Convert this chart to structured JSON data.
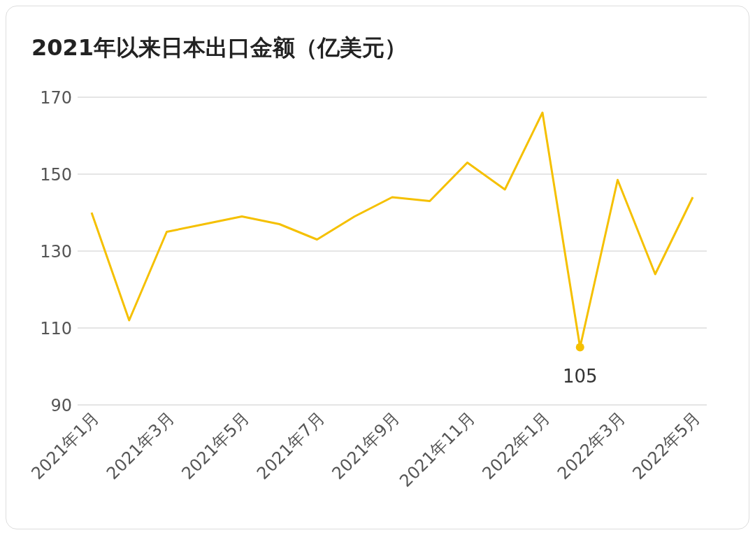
{
  "chart_data": {
    "type": "line",
    "title": "2021年以来日本出口金额（亿美元）",
    "categories": [
      "2021年1月",
      null,
      "2021年3月",
      null,
      "2021年5月",
      null,
      "2021年7月",
      null,
      "2021年9月",
      null,
      "2021年11月",
      null,
      "2022年1月",
      null,
      "2022年3月",
      null,
      "2022年5月"
    ],
    "series": [
      {
        "color": "#f5c000",
        "values": [
          140,
          112,
          135,
          137,
          139,
          137,
          133,
          139,
          144,
          143,
          153,
          146,
          166,
          105,
          148.5,
          124,
          144
        ],
        "value_labels": [
          null,
          null,
          null,
          null,
          null,
          null,
          null,
          null,
          null,
          null,
          null,
          null,
          null,
          "105",
          null,
          null,
          null
        ]
      }
    ],
    "ylim": [
      90,
      170
    ],
    "yticks": [
      90,
      110,
      130,
      150,
      170
    ],
    "grid": "y",
    "marker": "none",
    "line_style": "solid"
  }
}
